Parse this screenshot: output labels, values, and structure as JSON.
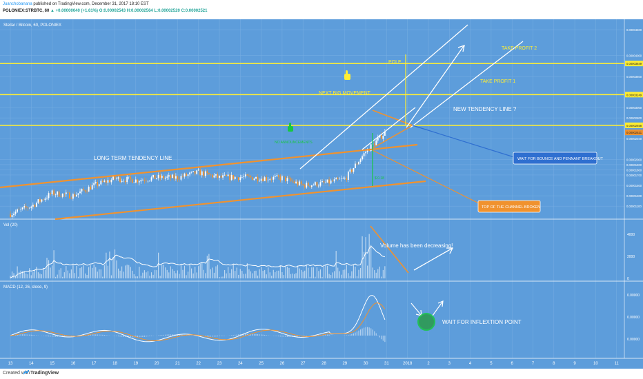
{
  "header": {
    "author": "Juanchobanana",
    "published": " published on TradingView.com, December 31, 2017 18:10 EST",
    "symbol": "POLONIEX:STRBTC, 60",
    "change": "▲ +0.00000040 (+1.61%)",
    "ohlc": "O:0.00002543 H:0.00002564 L:0.00002520 C:0.00002521"
  },
  "footer": {
    "created_with": "Created with",
    "brand": "TradingView"
  },
  "colors": {
    "background": "#5d9ddb",
    "yellow": "#ffee33",
    "orange": "#f0922e",
    "white": "#ffffff",
    "green": "#18c742",
    "box_blue": "#2f6fd0"
  },
  "icons": [
    "hand-pointer-icon",
    "tradingview-logo-icon"
  ],
  "chart_data": [
    {
      "type": "line",
      "pane": "price",
      "title": "Stellar / Bitcoin, 60, POLONIEX",
      "xlabel": "",
      "ylabel": "",
      "x_tick_labels": [
        "13",
        "14",
        "15",
        "16",
        "17",
        "18",
        "19",
        "20",
        "21",
        "22",
        "23",
        "24",
        "25",
        "26",
        "27",
        "28",
        "29",
        "30",
        "31",
        "2018",
        "2",
        "3",
        "4",
        "5",
        "6",
        "7",
        "8",
        "9",
        "10",
        "11"
      ],
      "y_tick_labels": [
        "0.00004500",
        "0.00004000",
        "0.00003849",
        "0.00003600",
        "0.00003249",
        "0.00003000",
        "0.00002800",
        "0.00002658",
        "0.00002521",
        "0.00002400",
        "0.00002000",
        "0.00001900",
        "0.00001800",
        "0.00001700",
        "0.00001500",
        "0.00001300",
        "0.00001100"
      ],
      "horizontal_levels": [
        3.849e-05,
        3.249e-05,
        2.658e-05
      ],
      "last_price": 2.521e-05,
      "series": [
        {
          "name": "",
          "x": [
            "13",
            "14",
            "15",
            "16",
            "17",
            "18",
            "19",
            "20",
            "21",
            "22",
            "23",
            "24",
            "25",
            "26",
            "27",
            "28",
            "29",
            "30",
            "31"
          ],
          "values": [
            9.5e-06,
            1.1e-05,
            1.35e-05,
            1.3e-05,
            1.5e-05,
            1.63e-05,
            1.6e-05,
            1.65e-05,
            1.65e-05,
            1.75e-05,
            1.65e-05,
            1.66e-05,
            1.64e-05,
            1.64e-05,
            1.5e-05,
            1.54e-05,
            1.62e-05,
            2.15e-05,
            2.55e-05
          ]
        }
      ],
      "annotations": [
        "LONG TERM TENDENCY LINE",
        "NEXT BIG MOVEMENT",
        "NEW TENDENCY LINE ?",
        "TAKE PROFIT 1",
        "TAKE PROFIT 2",
        "POLE",
        "WAIT FOR BOUNCE AND PENNANT BREAKOUT",
        "TOP OF THE CHANNEL BROKEN",
        "NO ANNOUNCEMENTS",
        "$ 0.18"
      ]
    },
    {
      "type": "bar",
      "pane": "volume",
      "title": "Vol (20)",
      "y_tick_labels": [
        "4000",
        "2000",
        "0"
      ],
      "annotations": [
        "Volume has been decreasing!"
      ]
    },
    {
      "type": "line",
      "pane": "macd",
      "title": "MACD (12, 26, close, 9)",
      "y_tick_labels": [
        "0.00000",
        "0.00000",
        "0.00000"
      ],
      "annotations": [
        "WAIT FOR INFLEXTION POINT"
      ]
    }
  ]
}
